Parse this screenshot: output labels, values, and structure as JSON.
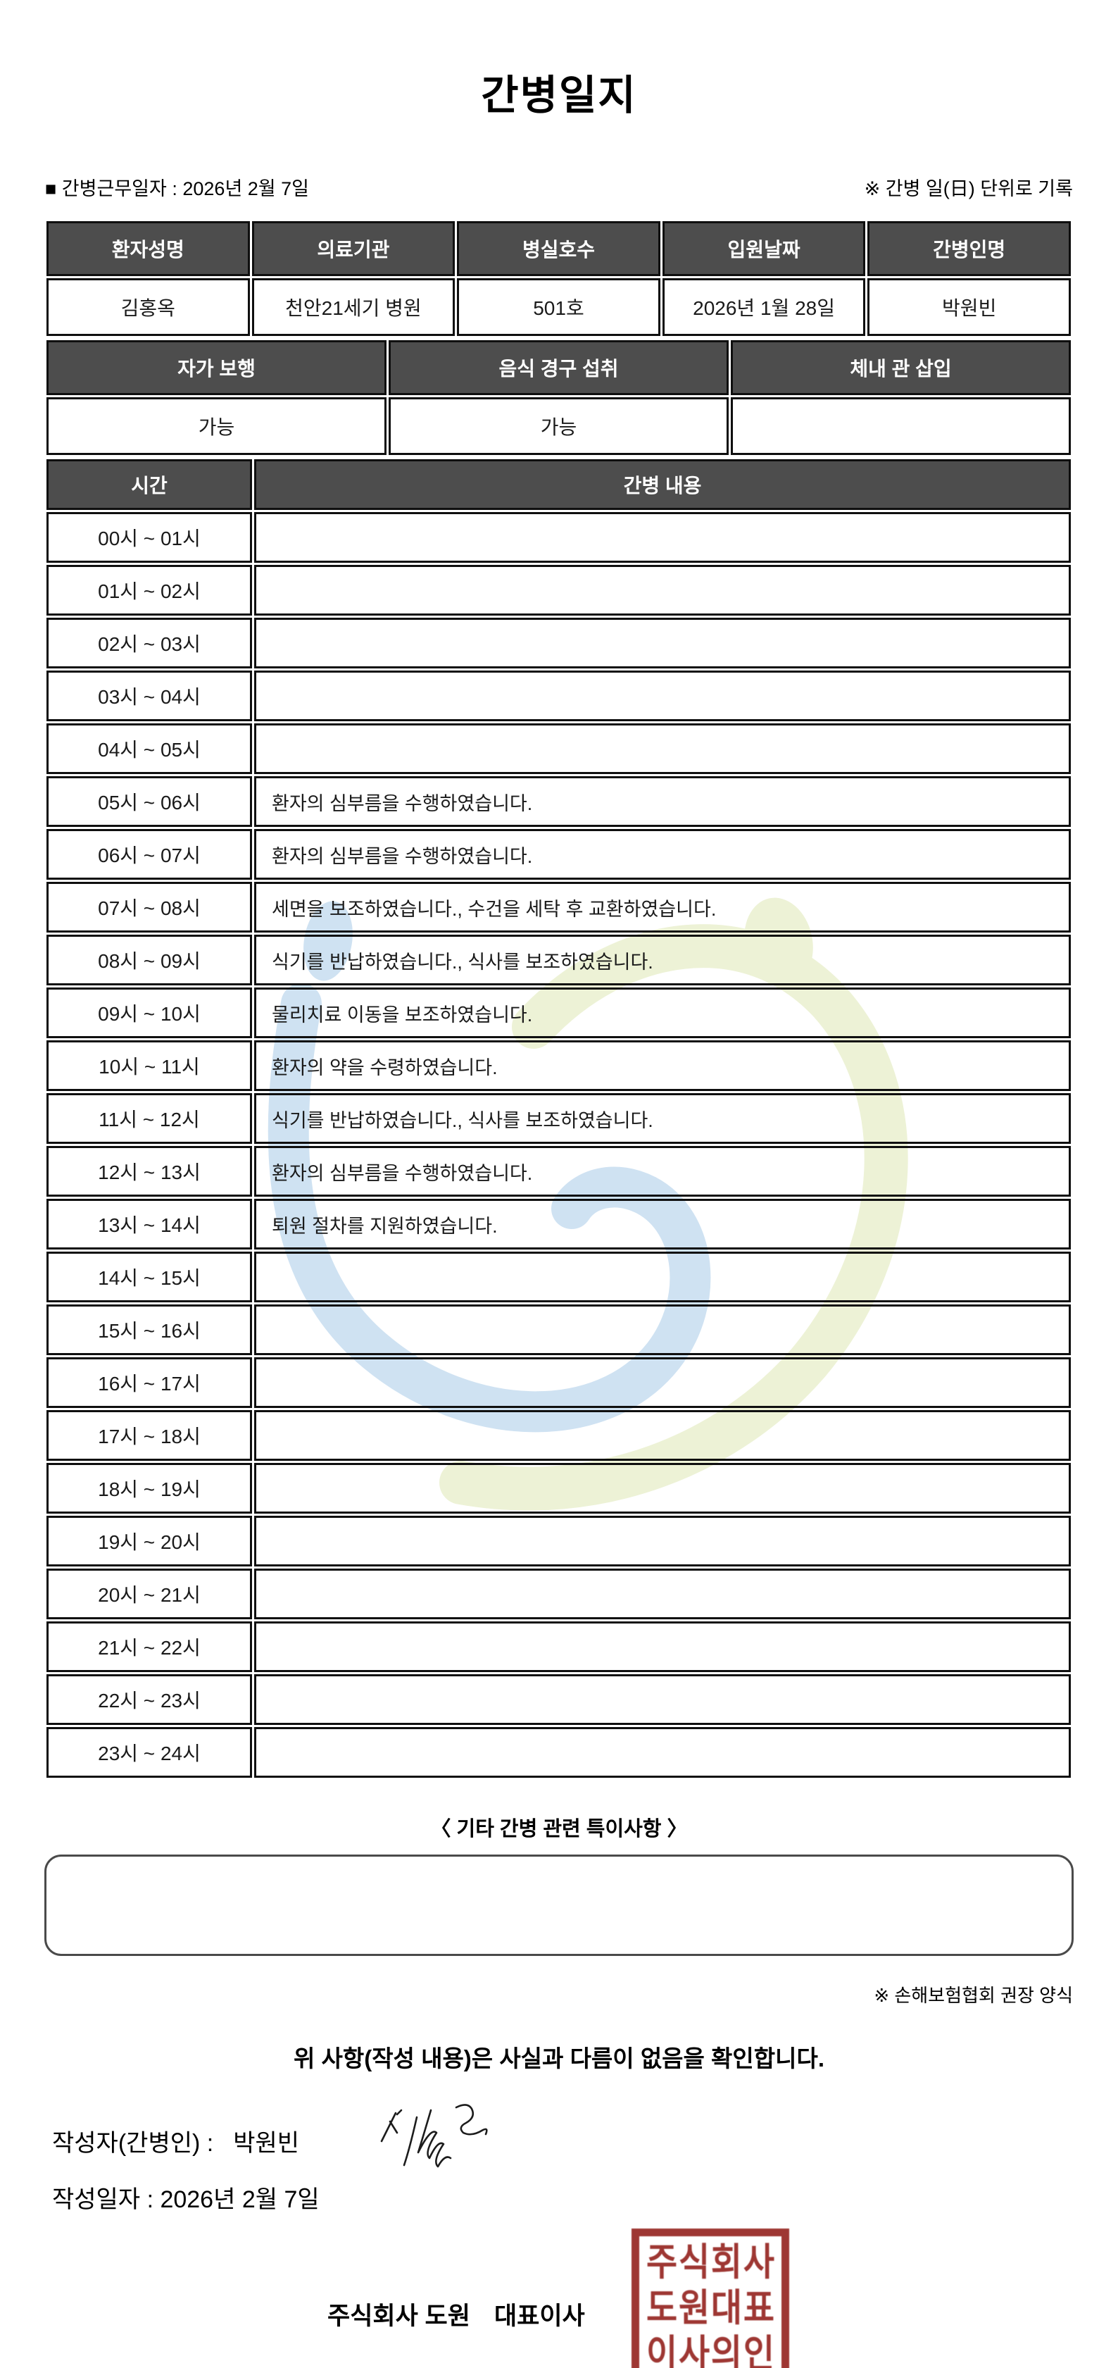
{
  "title": "간병일지",
  "meta": {
    "work_date_label": "■ 간병근무일자 :",
    "work_date_value": "2026년 2월 7일",
    "unit_note": "※ 간병 일(日) 단위로 기록"
  },
  "patient_table": {
    "headers": [
      "환자성명",
      "의료기관",
      "병실호수",
      "입원날짜",
      "간병인명"
    ],
    "values": [
      "김홍옥",
      "천안21세기 병원",
      "501호",
      "2026년 1월 28일",
      "박원빈"
    ]
  },
  "status_table": {
    "headers": [
      "자가 보행",
      "음식 경구 섭취",
      "체내 관 삽입"
    ],
    "values": [
      "가능",
      "가능",
      ""
    ]
  },
  "care_table": {
    "time_header": "시간",
    "content_header": "간병 내용",
    "rows": [
      {
        "time": "00시 ~ 01시",
        "content": ""
      },
      {
        "time": "01시 ~ 02시",
        "content": ""
      },
      {
        "time": "02시 ~ 03시",
        "content": ""
      },
      {
        "time": "03시 ~ 04시",
        "content": ""
      },
      {
        "time": "04시 ~ 05시",
        "content": ""
      },
      {
        "time": "05시 ~ 06시",
        "content": "환자의 심부름을 수행하였습니다."
      },
      {
        "time": "06시 ~ 07시",
        "content": "환자의 심부름을 수행하였습니다."
      },
      {
        "time": "07시 ~ 08시",
        "content": "세면을 보조하였습니다., 수건을 세탁 후 교환하였습니다."
      },
      {
        "time": "08시 ~ 09시",
        "content": "식기를 반납하였습니다., 식사를 보조하였습니다."
      },
      {
        "time": "09시 ~ 10시",
        "content": "물리치료 이동을 보조하였습니다."
      },
      {
        "time": "10시 ~ 11시",
        "content": "환자의 약을 수령하였습니다."
      },
      {
        "time": "11시 ~ 12시",
        "content": "식기를 반납하였습니다., 식사를 보조하였습니다."
      },
      {
        "time": "12시 ~ 13시",
        "content": "환자의 심부름을 수행하였습니다."
      },
      {
        "time": "13시 ~ 14시",
        "content": "퇴원 절차를 지원하였습니다."
      },
      {
        "time": "14시 ~ 15시",
        "content": ""
      },
      {
        "time": "15시 ~ 16시",
        "content": ""
      },
      {
        "time": "16시 ~ 17시",
        "content": ""
      },
      {
        "time": "17시 ~ 18시",
        "content": ""
      },
      {
        "time": "18시 ~ 19시",
        "content": ""
      },
      {
        "time": "19시 ~ 20시",
        "content": ""
      },
      {
        "time": "20시 ~ 21시",
        "content": ""
      },
      {
        "time": "21시 ~ 22시",
        "content": ""
      },
      {
        "time": "22시 ~ 23시",
        "content": ""
      },
      {
        "time": "23시 ~ 24시",
        "content": ""
      }
    ]
  },
  "notes": {
    "title": "〈 기타 간병 관련 특이사항 〉",
    "content": ""
  },
  "footer": {
    "form_note": "※ 손해보험협회 권장 양식",
    "confirmation": "위 사항(작성 내용)은 사실과 다름이 없음을 확인합니다.",
    "writer_label": "작성자(간병인) :",
    "writer_name": "박원빈",
    "date_label": "작성일자 :  2026년 2월 7일",
    "company_name": "주식회사 도원",
    "ceo_title": "대표이사",
    "stamp_rows": [
      "주식회사",
      "도원대표",
      "이사의인"
    ]
  },
  "colors": {
    "header_bg": "#4d4d4d",
    "border": "#0f0f0f",
    "stamp_red": "#9e3733",
    "watermark_blue": "#cfe2f2",
    "watermark_yellow": "#edf2d6"
  }
}
